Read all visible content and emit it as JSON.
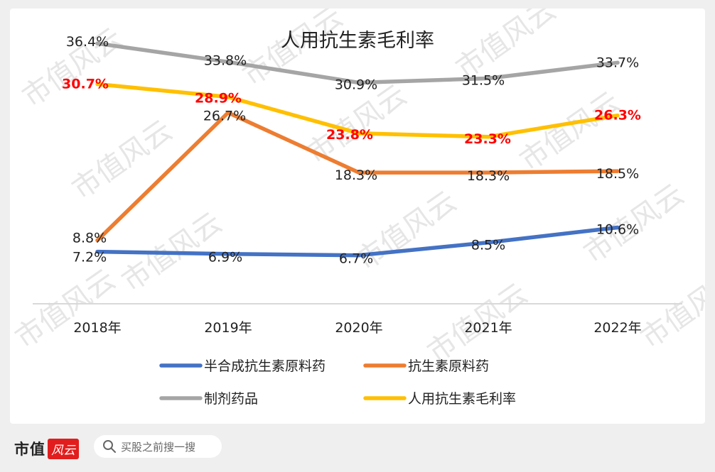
{
  "chart_data": {
    "type": "line",
    "title": "人用抗生素毛利率",
    "categories": [
      "2018年",
      "2019年",
      "2020年",
      "2021年",
      "2022年"
    ],
    "ylim": [
      0,
      40
    ],
    "grid": false,
    "legend_position": "bottom",
    "series": [
      {
        "name": "半合成抗生素原料药",
        "color": "#4472C4",
        "values": [
          7.2,
          6.9,
          6.7,
          8.5,
          10.6
        ],
        "labels": [
          "7.2%",
          "6.9%",
          "6.7%",
          "8.5%",
          "10.6%"
        ],
        "label_color": "#222222",
        "label_bold": false
      },
      {
        "name": "抗生素原料药",
        "color": "#ED7D31",
        "values": [
          8.8,
          26.7,
          18.3,
          18.3,
          18.5
        ],
        "labels": [
          "8.8%",
          "26.7%",
          "18.3%",
          "18.3%",
          "18.5%"
        ],
        "label_color": "#222222",
        "label_bold": false
      },
      {
        "name": "制剂药品",
        "color": "#A5A5A5",
        "values": [
          36.4,
          33.8,
          30.9,
          31.5,
          33.7
        ],
        "labels": [
          "36.4%",
          "33.8%",
          "30.9%",
          "31.5%",
          "33.7%"
        ],
        "label_color": "#222222",
        "label_bold": false
      },
      {
        "name": "人用抗生素毛利率",
        "color": "#FFC000",
        "values": [
          30.7,
          28.9,
          23.8,
          23.3,
          26.3
        ],
        "labels": [
          "30.7%",
          "28.9%",
          "23.8%",
          "23.3%",
          "26.3%"
        ],
        "label_color": "#FF0000",
        "label_bold": true
      }
    ]
  },
  "watermark": {
    "text": "市值风云",
    "color": "#e6e6e6"
  },
  "footer": {
    "brand_text": "市值",
    "brand_badge": "风云",
    "search_placeholder": "买股之前搜一搜",
    "search_icon": "search-icon"
  }
}
